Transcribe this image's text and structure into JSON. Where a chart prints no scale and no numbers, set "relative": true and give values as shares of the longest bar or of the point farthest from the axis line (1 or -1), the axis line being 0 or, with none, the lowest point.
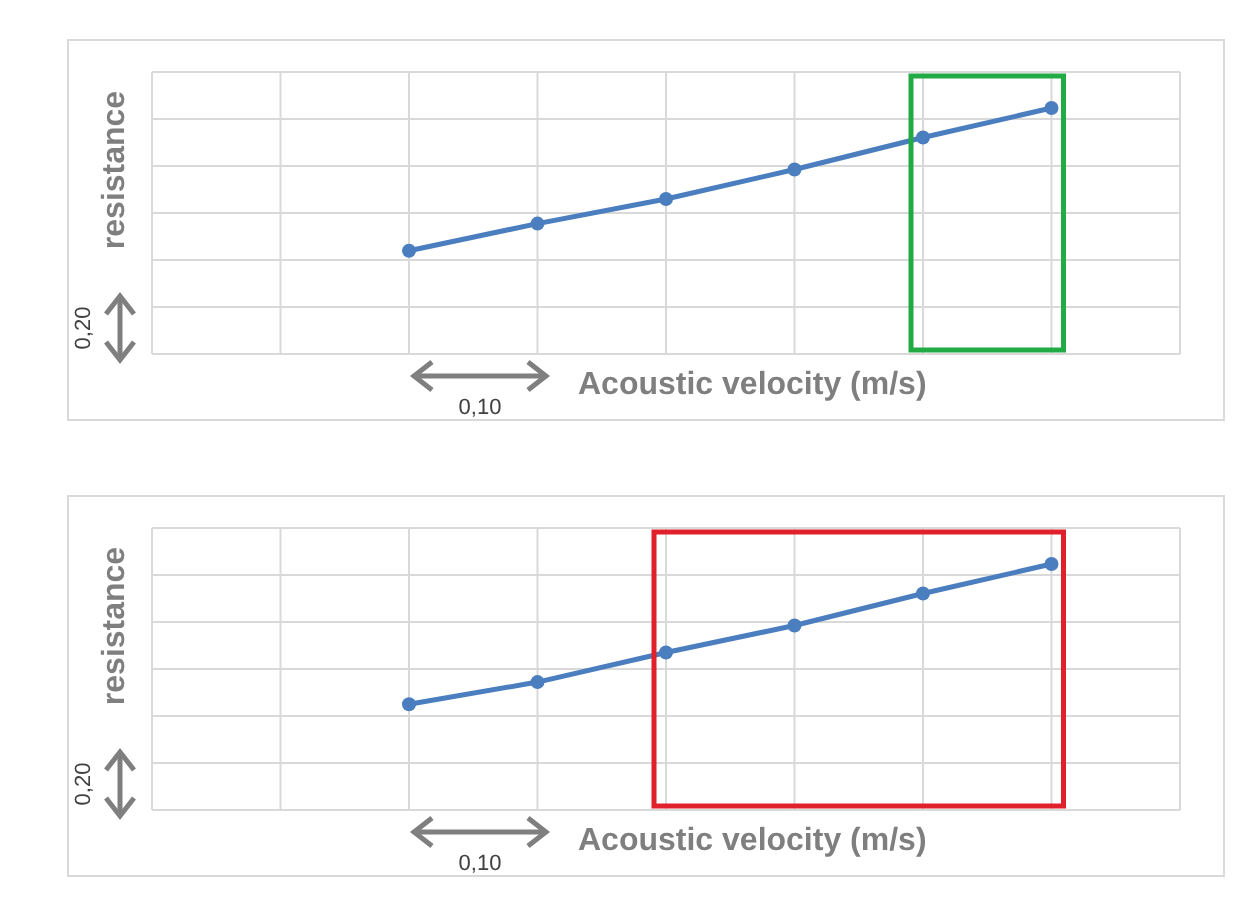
{
  "chart_data": [
    {
      "type": "line",
      "relative": true,
      "ylabel": "resistance",
      "xlabel": "Acoustic velocity (m/s)",
      "categories": [
        null,
        null,
        null,
        null,
        null,
        null,
        null,
        null
      ],
      "grid": true,
      "marker": "circle",
      "color": "#4a7ebf",
      "values": [
        null,
        null,
        0.42,
        0.53,
        0.63,
        0.75,
        0.88,
        1
      ],
      "annotations": [
        "0,20",
        "0,10"
      ]
    },
    {
      "type": "line",
      "relative": true,
      "ylabel": "resistance",
      "xlabel": "Acoustic velocity (m/s)",
      "categories": [
        null,
        null,
        null,
        null,
        null,
        null,
        null,
        null
      ],
      "grid": true,
      "marker": "circle",
      "color": "#4a7ebf",
      "values": [
        null,
        null,
        0.43,
        0.52,
        0.64,
        0.75,
        0.88,
        1
      ],
      "annotations": [
        "0,20",
        "0,10"
      ]
    }
  ]
}
